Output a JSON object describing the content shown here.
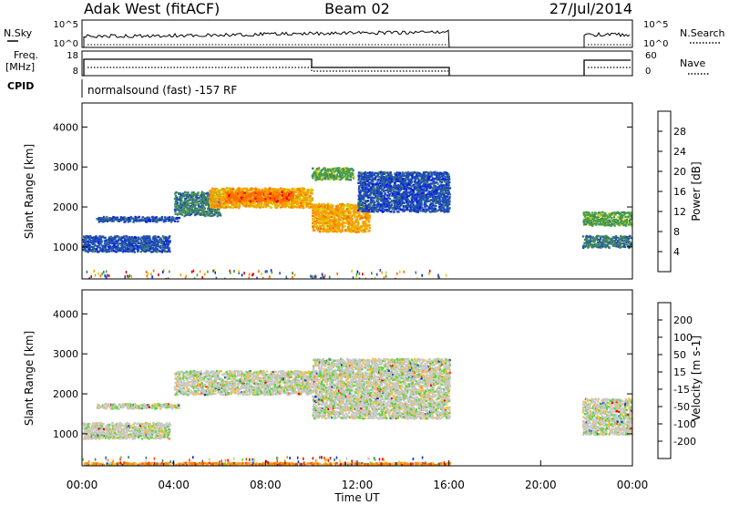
{
  "header": {
    "station": "Adak West (fitACF)",
    "beam": "Beam 02",
    "date": "27/Jul/2014"
  },
  "status_panels": {
    "nsky": {
      "label": "N.Sky",
      "ticks": [
        "10^5",
        "10^0"
      ],
      "right_label": "N.Search",
      "right_ticks": [
        "10^5",
        "10^0"
      ]
    },
    "freq": {
      "label_line1": "Freq.",
      "label_line2": "[MHz]",
      "ticks": [
        "18",
        "8"
      ],
      "right_label": "Nave",
      "right_ticks": [
        "60",
        "0"
      ]
    },
    "cpid": {
      "label": "CPID",
      "program": "normalsound (fast) -157 RF"
    }
  },
  "chart_data": [
    {
      "type": "heatmap",
      "quantity": "Power",
      "xlabel": "",
      "ylabel": "Slant Range [km]",
      "yticks": [
        "1000",
        "2000",
        "3000",
        "4000"
      ],
      "ylim": [
        200,
        4600
      ],
      "colorbar": {
        "label": "Power [dB]",
        "ticks": [
          "4",
          "8",
          "12",
          "16",
          "20",
          "24",
          "28"
        ],
        "colors": [
          "#0a1ee6",
          "#2050b0",
          "#3e7e6a",
          "#49a04a",
          "#d4d400",
          "#f4a000",
          "#ff6a00",
          "#e60000"
        ]
      },
      "bands": [
        {
          "t0": 0.0,
          "t1": 3.8,
          "r0": 900,
          "r1": 1300,
          "level": 1
        },
        {
          "t0": 0.6,
          "t1": 4.2,
          "r0": 1650,
          "r1": 1780,
          "level": 1
        },
        {
          "t0": 4.0,
          "t1": 6.0,
          "r0": 1800,
          "r1": 2400,
          "level": 2
        },
        {
          "t0": 5.5,
          "t1": 10.0,
          "r0": 2000,
          "r1": 2500,
          "level": 5
        },
        {
          "t0": 6.2,
          "t1": 9.2,
          "r0": 2150,
          "r1": 2400,
          "level": 6
        },
        {
          "t0": 10.0,
          "t1": 12.5,
          "r0": 1400,
          "r1": 2100,
          "level": 5
        },
        {
          "t0": 12.0,
          "t1": 16.0,
          "r0": 1900,
          "r1": 2900,
          "level": 1
        },
        {
          "t0": 10.0,
          "t1": 11.8,
          "r0": 2700,
          "r1": 3000,
          "level": 3
        },
        {
          "t0": 21.8,
          "t1": 24.0,
          "r0": 1550,
          "r1": 1900,
          "level": 3
        },
        {
          "t0": 21.8,
          "t1": 24.0,
          "r0": 1000,
          "r1": 1300,
          "level": 2
        }
      ]
    },
    {
      "type": "heatmap",
      "quantity": "Velocity",
      "xlabel": "Time UT",
      "ylabel": "Slant Range [km]",
      "yticks": [
        "1000",
        "2000",
        "3000",
        "4000"
      ],
      "xticks": [
        "00:00",
        "04:00",
        "08:00",
        "12:00",
        "16:00",
        "20:00",
        "00:00"
      ],
      "xlim": [
        0,
        24
      ],
      "ylim": [
        200,
        4600
      ],
      "colorbar": {
        "label": "Velocity [m s-1]",
        "ticks": [
          "200",
          "100",
          "50",
          "15",
          "-15",
          "-50",
          "-100",
          "-200"
        ],
        "colors": [
          "#1030d0",
          "#2a6aa8",
          "#3a8a60",
          "#64d040",
          "#c8c8c8",
          "#f4c040",
          "#ff8c00",
          "#ff4000",
          "#e60000"
        ]
      },
      "bands": [
        {
          "t0": 0.0,
          "t1": 3.8,
          "r0": 900,
          "r1": 1300,
          "level": 4
        },
        {
          "t0": 0.6,
          "t1": 4.2,
          "r0": 1650,
          "r1": 1780,
          "level": 4
        },
        {
          "t0": 4.0,
          "t1": 10.0,
          "r0": 2000,
          "r1": 2600,
          "level": 4
        },
        {
          "t0": 10.0,
          "t1": 16.0,
          "r0": 1400,
          "r1": 2900,
          "level": 4
        },
        {
          "t0": 21.8,
          "t1": 24.0,
          "r0": 1000,
          "r1": 1900,
          "level": 4
        },
        {
          "t0": 0.0,
          "t1": 16.0,
          "r0": 200,
          "r1": 300,
          "level": 6
        }
      ]
    }
  ]
}
